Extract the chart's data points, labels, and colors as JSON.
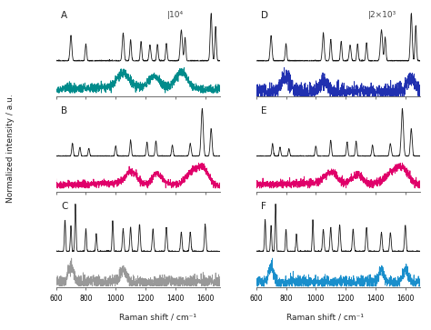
{
  "panel_labels": [
    "A",
    "B",
    "C",
    "D",
    "E",
    "F"
  ],
  "scale_bar_A": "|10⁴",
  "scale_bar_D": "|2×10³",
  "xlabel": "Raman shift / cm⁻¹",
  "ylabel": "Normalized intensity / a.u.",
  "x_range": [
    600,
    1700
  ],
  "x_ticks": [
    600,
    800,
    1000,
    1200,
    1400,
    1600
  ],
  "colors": {
    "black": "#1a1a1a",
    "teal": "#008B8B",
    "magenta": "#e0006a",
    "gray": "#999999",
    "blue_dark": "#2030b0",
    "blue_light": "#1a8fcc"
  },
  "background": "#e8e8e8"
}
